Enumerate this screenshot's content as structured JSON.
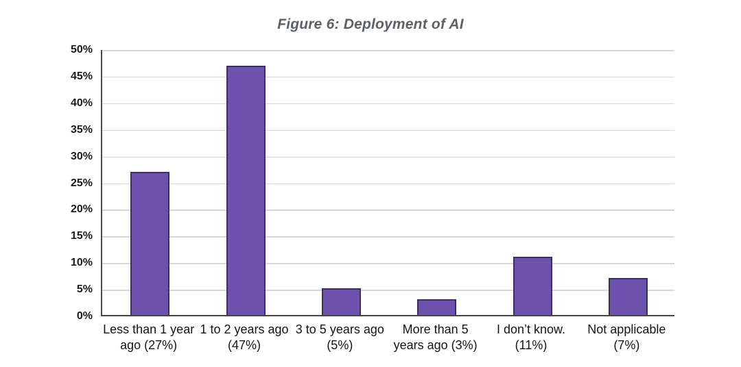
{
  "figure": {
    "title": "Figure 6: Deployment of AI"
  },
  "chart_data": {
    "type": "bar",
    "title": "Figure 6: Deployment of AI",
    "categories": [
      "Less than 1 year ago",
      "1 to 2 years ago",
      "3 to 5 years ago",
      "More than 5 years ago",
      "I don’t know.",
      "Not applicable"
    ],
    "values": [
      27,
      47,
      5,
      3,
      11,
      7
    ],
    "category_label_lines": [
      [
        "Less than 1 year",
        "ago (27%)"
      ],
      [
        "1 to 2 years ago",
        "(47%)"
      ],
      [
        "3 to 5 years ago",
        "(5%)"
      ],
      [
        "More than 5",
        "years ago (3%)"
      ],
      [
        "I don’t know.",
        "(11%)"
      ],
      [
        "Not applicable",
        "(7%)"
      ]
    ],
    "xlabel": "",
    "ylabel": "",
    "ylim": [
      0,
      50
    ],
    "ytick_step": 5,
    "ytick_labels": [
      "0%",
      "5%",
      "10%",
      "15%",
      "20%",
      "25%",
      "30%",
      "35%",
      "40%",
      "45%",
      "50%"
    ],
    "grid": true,
    "legend": "none",
    "colors": {
      "bar_fill": "#6c52ad",
      "bar_border": "#3a3158",
      "gridline": "#d8d8d8",
      "axis_line": "#4a4a4a",
      "title_text": "#5b6167",
      "tick_text": "#1b1b1b",
      "label_text": "#141414"
    }
  }
}
